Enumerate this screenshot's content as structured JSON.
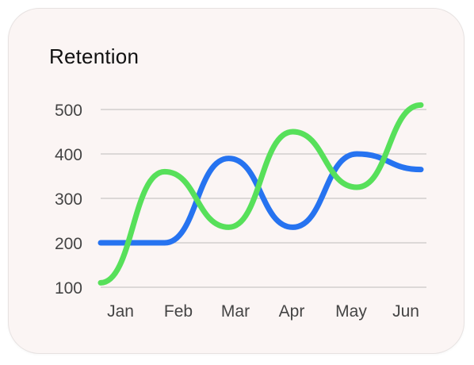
{
  "chart_data": {
    "type": "line",
    "title": "Retention",
    "categories": [
      "Jan",
      "Feb",
      "Mar",
      "Apr",
      "May",
      "Jun"
    ],
    "yticks": [
      100,
      200,
      300,
      400,
      500
    ],
    "ylim": [
      100,
      500
    ],
    "grid": true,
    "smooth": true,
    "series": [
      {
        "color": "#2673f0",
        "values": [
          200,
          200,
          390,
          235,
          400,
          365
        ]
      },
      {
        "color": "#57e05a",
        "values": [
          110,
          360,
          235,
          450,
          325,
          510
        ]
      }
    ]
  }
}
